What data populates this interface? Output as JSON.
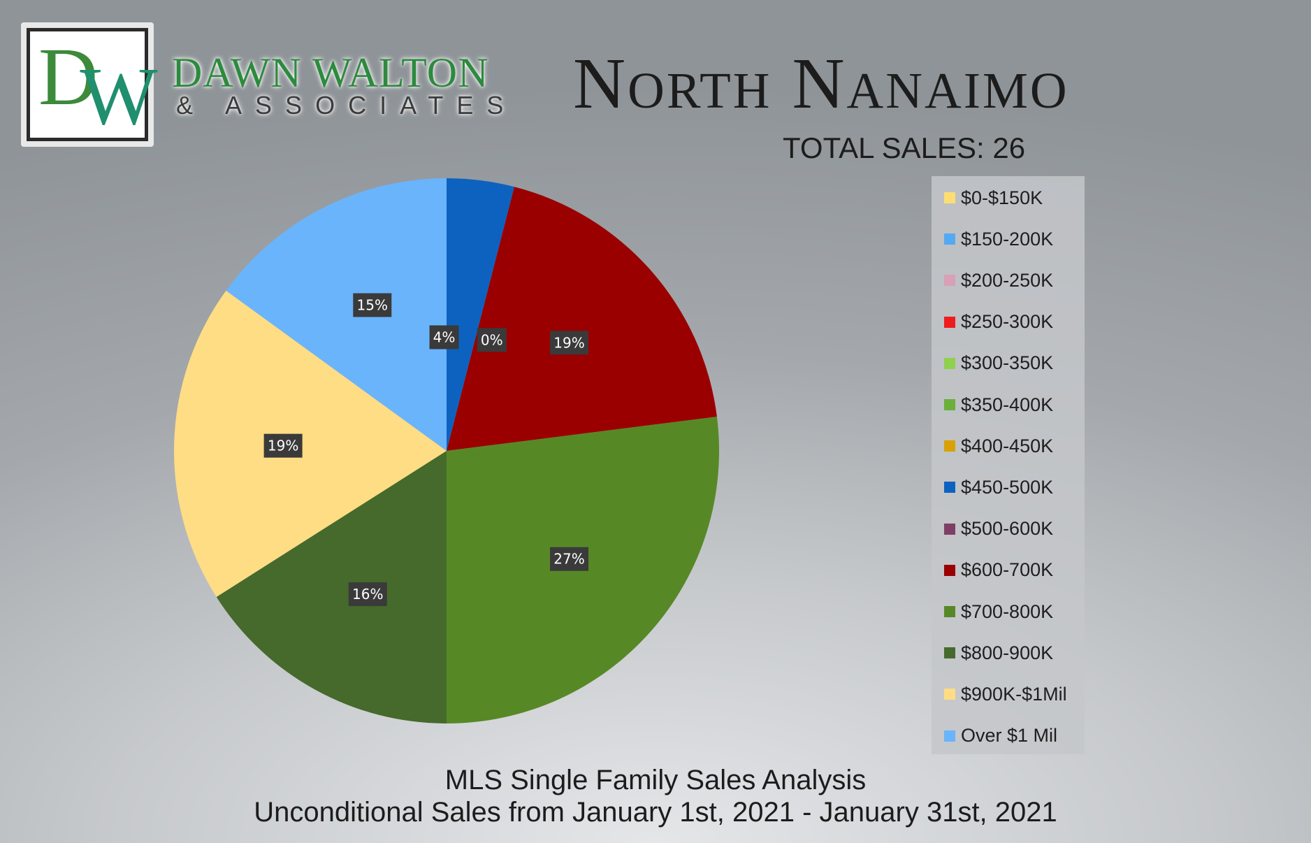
{
  "brand": {
    "monogram_d": "D",
    "monogram_w": "W",
    "name": "DAWN WALTON",
    "sub": "& ASSOCIATES"
  },
  "chart_data": {
    "type": "pie",
    "title": "North Nanaimo",
    "total_label": "TOTAL SALES: 26",
    "subtitle_lines": [
      "MLS Single Family Sales Analysis",
      "Unconditional Sales from January 1st, 2021 - January 31st, 2021"
    ],
    "legend_position": "right",
    "slices": [
      {
        "label": "$0-$150K",
        "percent": 0,
        "color": "#fedd74",
        "data_label": ""
      },
      {
        "label": "$150-200K",
        "percent": 0,
        "color": "#55a8f2",
        "data_label": ""
      },
      {
        "label": "$200-250K",
        "percent": 0,
        "color": "#d9a0b6",
        "data_label": ""
      },
      {
        "label": "$250-300K",
        "percent": 0,
        "color": "#ee1d1d",
        "data_label": ""
      },
      {
        "label": "$300-350K",
        "percent": 0,
        "color": "#8fd04e",
        "data_label": ""
      },
      {
        "label": "$350-400K",
        "percent": 0,
        "color": "#6caf3b",
        "data_label": ""
      },
      {
        "label": "$400-450K",
        "percent": 0,
        "color": "#d9a106",
        "data_label": ""
      },
      {
        "label": "$450-500K",
        "percent": 4,
        "color": "#0e62bf",
        "data_label": "4%"
      },
      {
        "label": "$500-600K",
        "percent": 0,
        "color": "#7e3f66",
        "data_label": "0%"
      },
      {
        "label": "$600-700K",
        "percent": 19,
        "color": "#9a0000",
        "data_label": "19%"
      },
      {
        "label": "$700-800K",
        "percent": 27,
        "color": "#578826",
        "data_label": "27%"
      },
      {
        "label": "$800-900K",
        "percent": 16,
        "color": "#456a2b",
        "data_label": "16%"
      },
      {
        "label": "$900K-$1Mil",
        "percent": 19,
        "color": "#fedd85",
        "data_label": "19%"
      },
      {
        "label": "Over $1 Mil",
        "percent": 15,
        "color": "#6ab4fb",
        "data_label": "15%"
      }
    ]
  }
}
